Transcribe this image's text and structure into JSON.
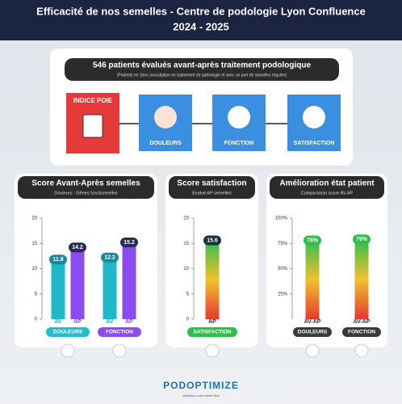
{
  "header": {
    "title": "Efficacité de nos semelles - Centre de podologie Lyon Confluence",
    "period": "2024 - 2025"
  },
  "overview": {
    "title": "546 patients évalués avant-après traitement podologique",
    "note": "(Patients en 1ère consultation en traitement de pathologie et avec un port de semelles régulier)",
    "steps": [
      "INDICE POIE",
      "DOULEURS",
      "FONCTION",
      "SATISFACTION"
    ]
  },
  "chart_data": [
    {
      "type": "bar",
      "title": "Score Avant-Après semelles",
      "subtitle": "Douleurs - Gênes fonctionnelles",
      "categories": [
        "DOULEURS",
        "FONCTION"
      ],
      "series": [
        {
          "name": "AV",
          "color": "#1fb8c9",
          "values": [
            11.8,
            12.2
          ]
        },
        {
          "name": "AP",
          "color": "#8a4cf0",
          "values": [
            14.2,
            15.2
          ]
        }
      ],
      "ylim": [
        0,
        20
      ],
      "yticks": [
        0,
        5,
        10,
        15,
        20
      ]
    },
    {
      "type": "bar",
      "title": "Score satisfaction",
      "subtitle": "Evalué AP semelles",
      "categories": [
        "AP"
      ],
      "groups": [
        "SATISFACTION"
      ],
      "values": [
        15.6
      ],
      "color": [
        "#2fbf4a",
        "#f2c12e",
        "#e5392c"
      ],
      "ylim": [
        0,
        20
      ],
      "yticks": [
        0,
        5,
        10,
        15,
        20
      ]
    },
    {
      "type": "bar",
      "title": "Amélioration état patient",
      "subtitle": "Comparaison score AV-AP",
      "categories": [
        "AV-AP",
        "AV-AP"
      ],
      "groups": [
        "DOULEURS",
        "FONCTION"
      ],
      "values": [
        78,
        79
      ],
      "value_labels": [
        "78%",
        "79%"
      ],
      "color": [
        "#2fbf4a",
        "#f2c12e",
        "#e5392c"
      ],
      "ylim": [
        0,
        100
      ],
      "yticks": [
        {
          "value": 25,
          "label": "25%"
        },
        {
          "value": 50,
          "label": "50%"
        },
        {
          "value": 75,
          "label": "75%"
        },
        {
          "value": 100,
          "label": "100%"
        }
      ]
    }
  ],
  "footer": {
    "brand": "PODOPTIMIZE",
    "tagline": "Valorisez votre santé libre"
  }
}
